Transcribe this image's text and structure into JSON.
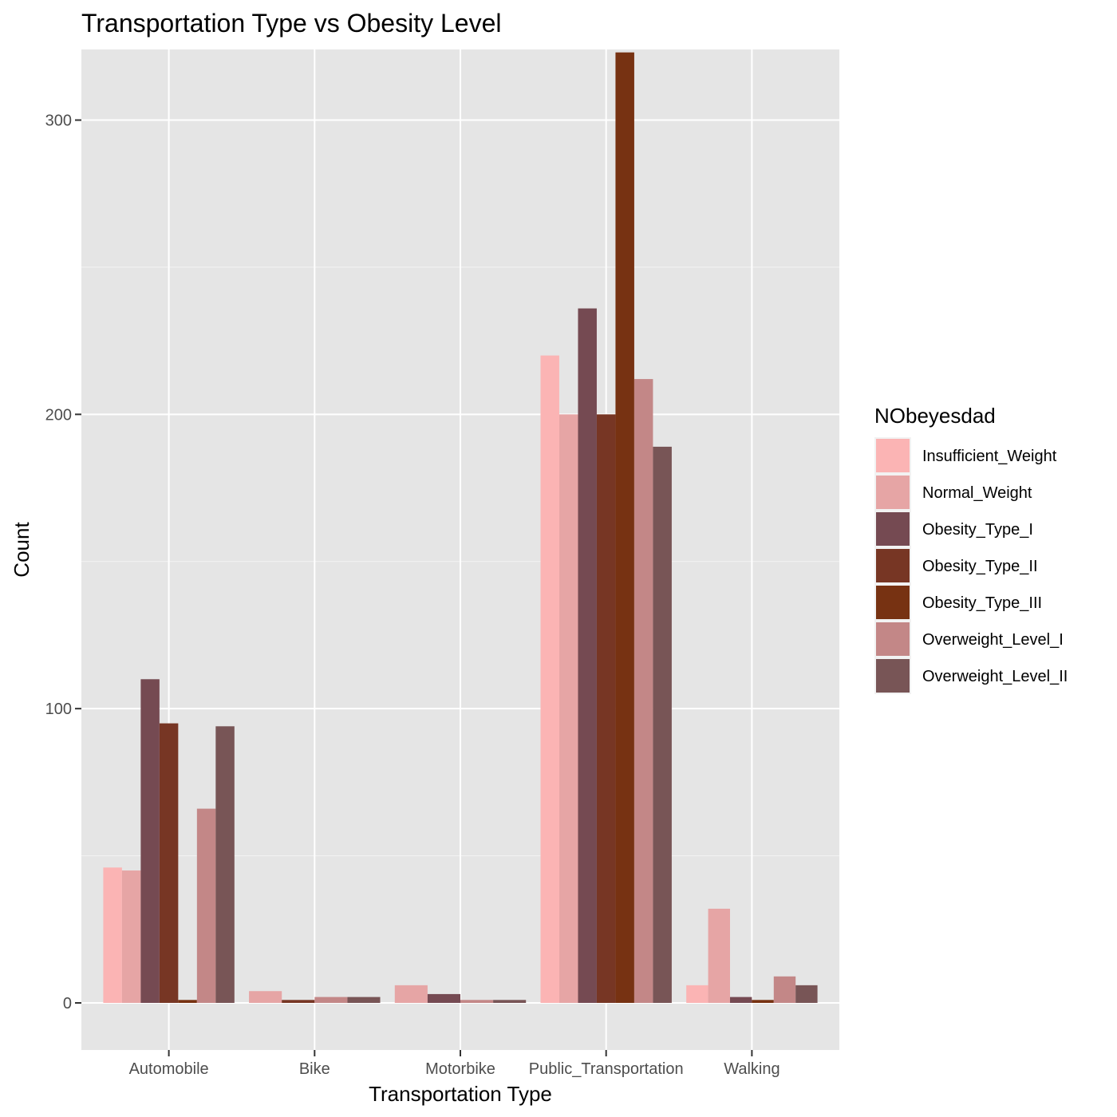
{
  "chart_data": {
    "type": "bar",
    "title": "Transportation Type vs Obesity Level",
    "xlabel": "Transportation Type",
    "ylabel": "Count",
    "ylim": [
      -16,
      324
    ],
    "yticks": [
      0,
      100,
      200,
      300
    ],
    "grid": true,
    "legend_title": "NObeyesdad",
    "legend_position": "right",
    "categories": [
      "Automobile",
      "Bike",
      "Motorbike",
      "Public_Transportation",
      "Walking"
    ],
    "series": [
      {
        "name": "Insufficient_Weight",
        "color": "#fbb4b4",
        "values": [
          46,
          0,
          0,
          220,
          6
        ]
      },
      {
        "name": "Normal_Weight",
        "color": "#e6a5a5",
        "values": [
          45,
          4,
          6,
          200,
          32
        ]
      },
      {
        "name": "Obesity_Type_I",
        "color": "#754a52",
        "values": [
          110,
          0,
          3,
          236,
          2
        ]
      },
      {
        "name": "Obesity_Type_II",
        "color": "#773624",
        "values": [
          95,
          1,
          0,
          200,
          0
        ]
      },
      {
        "name": "Obesity_Type_III",
        "color": "#773212",
        "values": [
          1,
          0,
          0,
          323,
          1
        ]
      },
      {
        "name": "Overweight_Level_I",
        "color": "#c38787",
        "values": [
          66,
          2,
          1,
          212,
          9
        ]
      },
      {
        "name": "Overweight_Level_II",
        "color": "#785556",
        "values": [
          94,
          2,
          1,
          189,
          6
        ]
      }
    ]
  }
}
